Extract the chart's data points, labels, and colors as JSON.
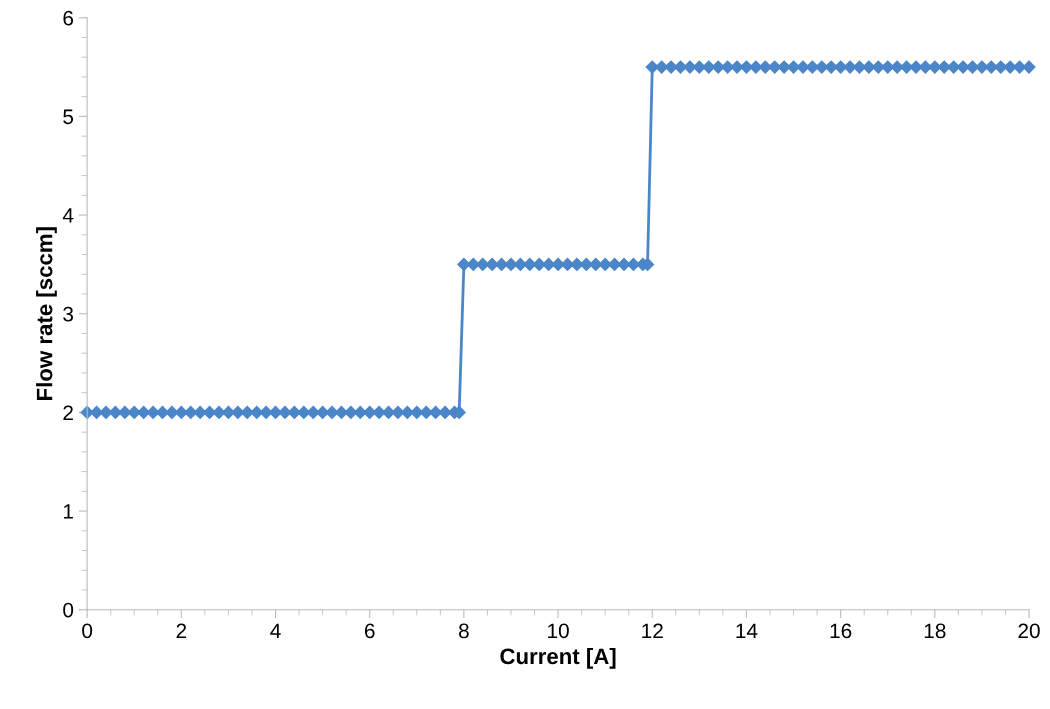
{
  "chart_data": {
    "type": "line",
    "xlabel": "Current [A]",
    "ylabel": "Flow rate [sccm]",
    "xlim": [
      0,
      20
    ],
    "xticks": [
      0,
      2,
      4,
      6,
      8,
      10,
      12,
      14,
      16,
      18,
      20
    ],
    "ylim": [
      0,
      6
    ],
    "yticks": [
      0,
      1,
      2,
      3,
      4,
      5,
      6
    ],
    "grid": false,
    "legend": false,
    "marker": "diamond",
    "line_style": "solid",
    "series": [
      {
        "color": "#4a86c8",
        "x": [
          0,
          0.2,
          0.4,
          0.6,
          0.8,
          1,
          1.2,
          1.4,
          1.6,
          1.8,
          2,
          2.2,
          2.4,
          2.6,
          2.8,
          3,
          3.2,
          3.4,
          3.6,
          3.8,
          4,
          4.2,
          4.4,
          4.6,
          4.8,
          5,
          5.2,
          5.4,
          5.6,
          5.8,
          6,
          6.2,
          6.4,
          6.6,
          6.8,
          7,
          7.2,
          7.4,
          7.6,
          7.8,
          7.9,
          8,
          8.2,
          8.4,
          8.6,
          8.8,
          9,
          9.2,
          9.4,
          9.6,
          9.8,
          10,
          10.2,
          10.4,
          10.6,
          10.8,
          11,
          11.2,
          11.4,
          11.6,
          11.8,
          11.9,
          12,
          12.2,
          12.4,
          12.6,
          12.8,
          13,
          13.2,
          13.4,
          13.6,
          13.8,
          14,
          14.2,
          14.4,
          14.6,
          14.8,
          15,
          15.2,
          15.4,
          15.6,
          15.8,
          16,
          16.2,
          16.4,
          16.6,
          16.8,
          17,
          17.2,
          17.4,
          17.6,
          17.8,
          18,
          18.2,
          18.4,
          18.6,
          18.8,
          19,
          19.2,
          19.4,
          19.6,
          19.8,
          20
        ],
        "values": [
          2,
          2,
          2,
          2,
          2,
          2,
          2,
          2,
          2,
          2,
          2,
          2,
          2,
          2,
          2,
          2,
          2,
          2,
          2,
          2,
          2,
          2,
          2,
          2,
          2,
          2,
          2,
          2,
          2,
          2,
          2,
          2,
          2,
          2,
          2,
          2,
          2,
          2,
          2,
          2,
          2,
          3.5,
          3.5,
          3.5,
          3.5,
          3.5,
          3.5,
          3.5,
          3.5,
          3.5,
          3.5,
          3.5,
          3.5,
          3.5,
          3.5,
          3.5,
          3.5,
          3.5,
          3.5,
          3.5,
          3.5,
          3.5,
          5.5,
          5.5,
          5.5,
          5.5,
          5.5,
          5.5,
          5.5,
          5.5,
          5.5,
          5.5,
          5.5,
          5.5,
          5.5,
          5.5,
          5.5,
          5.5,
          5.5,
          5.5,
          5.5,
          5.5,
          5.5,
          5.5,
          5.5,
          5.5,
          5.5,
          5.5,
          5.5,
          5.5,
          5.5,
          5.5,
          5.5,
          5.5,
          5.5,
          5.5,
          5.5,
          5.5,
          5.5,
          5.5,
          5.5,
          5.5,
          5.5
        ]
      }
    ]
  }
}
